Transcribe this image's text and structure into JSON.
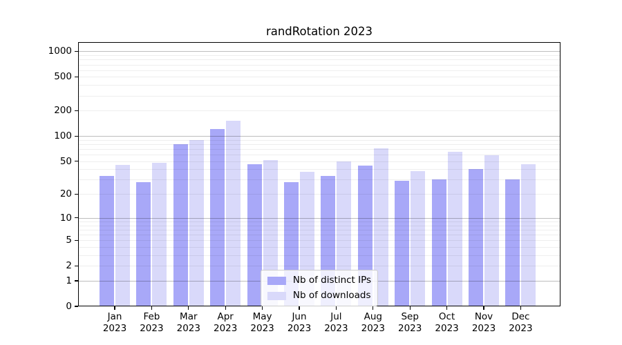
{
  "title": "randRotation 2023",
  "chart_data": {
    "type": "bar",
    "title": "randRotation 2023",
    "categories": [
      "Jan 2023",
      "Feb 2023",
      "Mar 2023",
      "Apr 2023",
      "May 2023",
      "Jun 2023",
      "Jul 2023",
      "Aug 2023",
      "Sep 2023",
      "Oct 2023",
      "Nov 2023",
      "Dec 2023"
    ],
    "series": [
      {
        "name": "Nb of distinct IPs",
        "color": "#a8a8f8",
        "values": [
          33,
          28,
          80,
          120,
          46,
          28,
          33,
          44,
          29,
          30,
          40,
          30
        ]
      },
      {
        "name": "Nb of downloads",
        "color": "#d9d9fa",
        "values": [
          45,
          48,
          90,
          152,
          52,
          37,
          50,
          71,
          38,
          65,
          59,
          46
        ]
      }
    ],
    "xlabel": "",
    "ylabel": "",
    "yscale": "log1p",
    "ylim": [
      0,
      1285
    ],
    "y_ticks": [
      0,
      1,
      2,
      5,
      10,
      20,
      50,
      100,
      200,
      500,
      1000
    ],
    "y_major_gridlines": [
      1,
      10,
      100,
      1000
    ],
    "y_minor_gridlines": [
      2,
      3,
      4,
      5,
      6,
      7,
      8,
      9,
      20,
      30,
      40,
      50,
      60,
      70,
      80,
      90,
      200,
      300,
      400,
      500,
      600,
      700,
      800,
      900
    ],
    "grid": true,
    "legend_position": "lower center",
    "colors": {
      "spine": "#000000",
      "background": "#ffffff",
      "major_grid": "#b9b9b9",
      "minor_grid": "#e8e8e8"
    }
  }
}
